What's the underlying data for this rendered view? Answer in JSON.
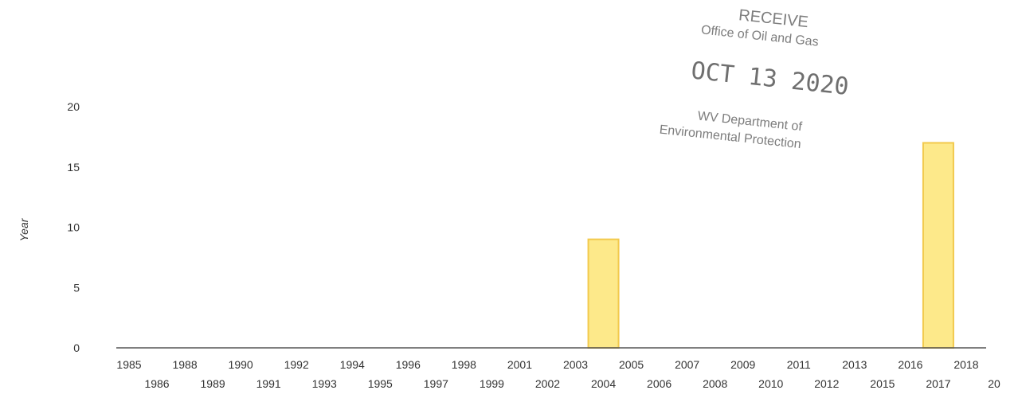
{
  "chart_data": {
    "type": "bar",
    "title": "",
    "ylabel": "Year",
    "xlabel": "",
    "ylim": [
      0,
      25
    ],
    "yticks": [
      0,
      5,
      10,
      15,
      20
    ],
    "grid": false,
    "bar_color": "#fde98a",
    "bar_edge_color": "#f2c94c",
    "categories": [
      "1985",
      "1986",
      "1988",
      "1989",
      "1990",
      "1991",
      "1992",
      "1993",
      "1994",
      "1995",
      "1996",
      "1997",
      "1998",
      "1999",
      "2001",
      "2002",
      "2003",
      "2004",
      "2005",
      "2006",
      "2007",
      "2008",
      "2009",
      "2010",
      "2011",
      "2012",
      "2013",
      "2015",
      "2016",
      "2017",
      "2018",
      "20"
    ],
    "values": [
      0,
      0,
      0,
      0,
      0,
      0,
      0,
      0,
      0,
      0,
      0,
      0,
      0,
      0,
      0,
      0,
      0,
      9,
      0,
      0,
      0,
      0,
      0,
      0,
      0,
      0,
      0,
      0,
      0,
      17,
      0,
      0
    ]
  },
  "stamp": {
    "line1": "RECEIVE",
    "line2": "Office of Oil and Gas",
    "line3": "OCT 13 2020",
    "line4": "WV Department of",
    "line5": "Environmental Protection",
    "color": "#7d7d7d"
  }
}
